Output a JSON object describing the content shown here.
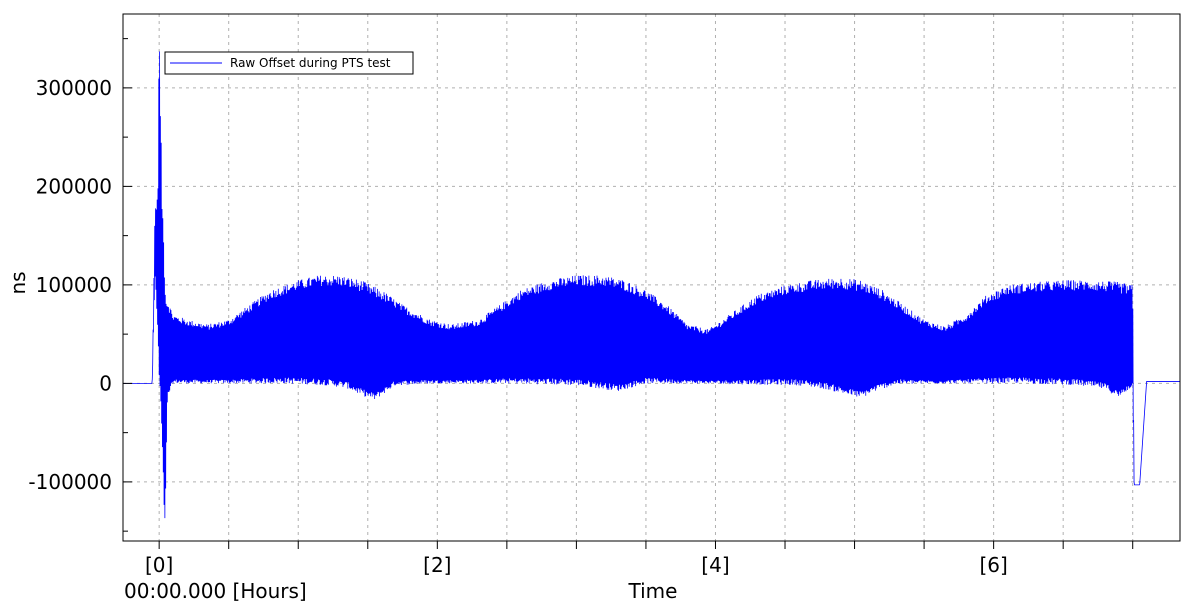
{
  "chart_data": {
    "type": "line",
    "xlabel": "Time",
    "ylabel": "ns",
    "x_origin_label": "00:00.000 [Hours]",
    "x_tick_labels": [
      {
        "x": 0,
        "label": "[0]"
      },
      {
        "x": 2,
        "label": "[2]"
      },
      {
        "x": 4,
        "label": "[4]"
      },
      {
        "x": 6,
        "label": "[6]"
      }
    ],
    "y_ticks": [
      -100000,
      0,
      100000,
      200000,
      300000
    ],
    "y_tick_labels": [
      "-100000",
      "0",
      "100000",
      "200000",
      "300000"
    ],
    "xlim": [
      -0.26,
      7.34
    ],
    "ylim": [
      -160000,
      375000
    ],
    "grid": true,
    "legend": {
      "position": "top-left"
    },
    "series": [
      {
        "name": "Raw Offset during PTS test",
        "color": "#0000ff",
        "peak_envelope": {
          "x": [
            -0.26,
            -0.05,
            -0.03,
            -0.01,
            0.0,
            0.02,
            0.05,
            0.1,
            0.2,
            0.35,
            0.5,
            0.65,
            0.8,
            1.0,
            1.15,
            1.3,
            1.45,
            1.6,
            1.75,
            1.95,
            2.1,
            2.3,
            2.45,
            2.6,
            2.8,
            3.0,
            3.2,
            3.35,
            3.5,
            3.65,
            3.8,
            3.95,
            4.1,
            4.3,
            4.5,
            4.7,
            4.9,
            5.05,
            5.2,
            5.35,
            5.5,
            5.65,
            5.8,
            5.95,
            6.1,
            6.3,
            6.5,
            6.7,
            6.9,
            7.0,
            7.01,
            7.05,
            7.1,
            7.34
          ],
          "y": [
            0,
            0,
            180000,
            190000,
            370000,
            200000,
            90000,
            70000,
            65000,
            60000,
            65000,
            80000,
            95000,
            105000,
            110000,
            110000,
            105000,
            95000,
            80000,
            65000,
            60000,
            65000,
            80000,
            95000,
            105000,
            110000,
            110000,
            105000,
            95000,
            80000,
            60000,
            55000,
            70000,
            90000,
            100000,
            105000,
            108000,
            105000,
            95000,
            80000,
            65000,
            58000,
            70000,
            90000,
            100000,
            103000,
            105000,
            105000,
            103000,
            100000,
            -103000,
            -103000,
            2000,
            2000
          ]
        },
        "trough_envelope": {
          "x": [
            -0.26,
            -0.05,
            -0.03,
            -0.01,
            0.0,
            0.02,
            0.04,
            0.06,
            0.1,
            0.3,
            0.6,
            0.9,
            1.2,
            1.35,
            1.45,
            1.55,
            1.6,
            1.7,
            2.0,
            2.5,
            3.0,
            3.15,
            3.3,
            3.4,
            3.5,
            3.8,
            4.2,
            4.6,
            4.8,
            4.95,
            5.05,
            5.15,
            5.3,
            5.7,
            6.2,
            6.6,
            6.8,
            6.9,
            7.0,
            7.01,
            7.05,
            7.1,
            7.34
          ],
          "y": [
            0,
            0,
            110000,
            50000,
            0,
            -55000,
            -160000,
            -15000,
            0,
            0,
            0,
            0,
            -2000,
            -5000,
            -12000,
            -17000,
            -12000,
            -2000,
            0,
            0,
            -2000,
            -5000,
            -8000,
            -4000,
            0,
            0,
            -1000,
            -2000,
            -6000,
            -12000,
            -15000,
            -8000,
            -1000,
            0,
            0,
            -2000,
            -6000,
            -15000,
            -3000,
            -103000,
            -103000,
            2000,
            2000
          ]
        }
      }
    ]
  }
}
